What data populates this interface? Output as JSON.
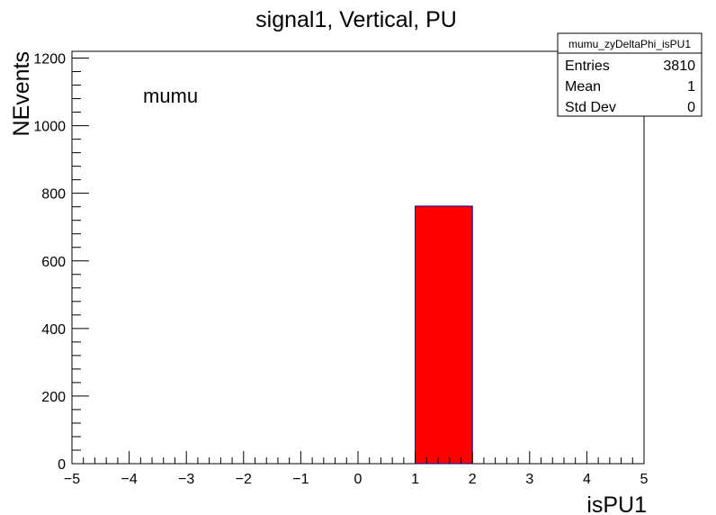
{
  "chart_data": {
    "type": "bar",
    "title": "signal1, Vertical, PU",
    "xlabel": "isPU1",
    "ylabel": "NEvents",
    "xlim": [
      -5,
      5
    ],
    "ylim": [
      0,
      1220
    ],
    "x_ticks": [
      "−5",
      "−4",
      "−3",
      "−2",
      "−1",
      "0",
      "1",
      "2",
      "3",
      "4",
      "5"
    ],
    "y_ticks": [
      "0",
      "200",
      "400",
      "600",
      "800",
      "1000",
      "1200"
    ],
    "bins": [
      {
        "x_low": 1,
        "x_high": 2,
        "value": 762
      }
    ],
    "bar_color": "#ff0000",
    "bar_edge_color": "#000099",
    "annotation": "mumu",
    "stats_box": {
      "name": "mumu_zyDeltaPhi_isPU1",
      "rows": [
        {
          "label": "Entries",
          "value": "3810"
        },
        {
          "label": "Mean",
          "value": "1"
        },
        {
          "label": "Std Dev",
          "value": "0"
        }
      ]
    },
    "grid": false,
    "legend": "none"
  }
}
